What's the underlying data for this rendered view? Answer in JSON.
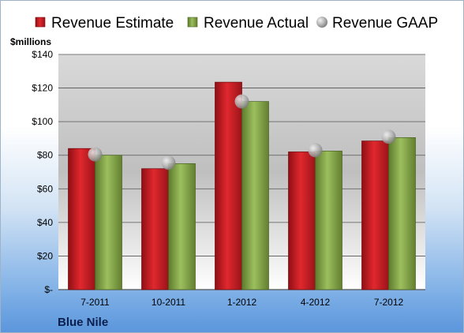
{
  "chart_data": {
    "type": "bar",
    "company": "Blue Nile",
    "unit_label": "$millions",
    "categories": [
      "7-2011",
      "10-2011",
      "1-2012",
      "4-2012",
      "7-2012"
    ],
    "series": [
      {
        "name": "Revenue Estimate",
        "kind": "bar",
        "color": "#cc1f26",
        "values": [
          84,
          72,
          123.5,
          82,
          88.5
        ]
      },
      {
        "name": "Revenue Actual",
        "kind": "bar",
        "color": "#8db050",
        "values": [
          80,
          75,
          112,
          82.5,
          90.5
        ]
      },
      {
        "name": "Revenue GAAP",
        "kind": "point",
        "color": "#b8b8b8",
        "values": [
          80.5,
          75.5,
          112,
          83,
          91
        ]
      }
    ],
    "ylim": [
      0,
      140
    ],
    "yticks": [
      0,
      20,
      40,
      60,
      80,
      100,
      120,
      140
    ],
    "ytick_labels": [
      "$-",
      "$20",
      "$40",
      "$60",
      "$80",
      "$100",
      "$120",
      "$140"
    ],
    "grid": true,
    "legend_position": "top"
  }
}
